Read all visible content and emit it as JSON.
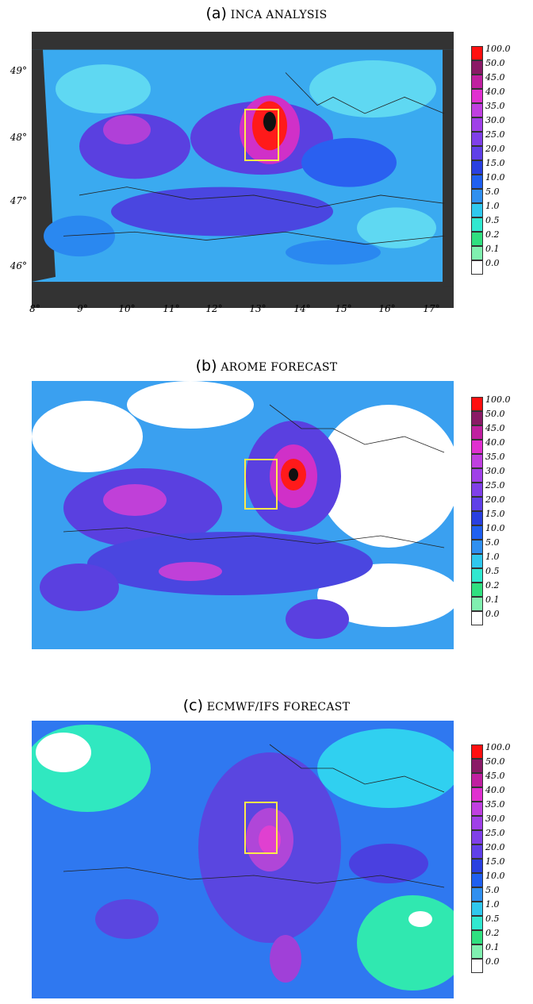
{
  "panels": [
    {
      "tag": "(a)",
      "label": "INCA ANALYSIS"
    },
    {
      "tag": "(b)",
      "label": "AROME FORECAST"
    },
    {
      "tag": "(c)",
      "label": "ECMWF/IFS FORECAST"
    }
  ],
  "y_ticks": [
    "49°",
    "48°",
    "47°",
    "46°"
  ],
  "x_ticks": [
    "8°",
    "9°",
    "10°",
    "11°",
    "12°",
    "13°",
    "14°",
    "15°",
    "16°",
    "17°"
  ],
  "legend": {
    "levels": [
      "100.0",
      "50.0",
      "45.0",
      "40.0",
      "35.0",
      "30.0",
      "25.0",
      "20.0",
      "15.0",
      "10.0",
      "5.0",
      "1.0",
      "0.5",
      "0.2",
      "0.1",
      "0.0"
    ],
    "colors": [
      "#ff1010",
      "#8a1a66",
      "#c020a0",
      "#e030d0",
      "#c040e0",
      "#a040e8",
      "#8040e8",
      "#6040e8",
      "#2a40e0",
      "#2060f0",
      "#3090f0",
      "#30c8ee",
      "#30e8d0",
      "#30e080",
      "#80f0b0",
      "#ffffff"
    ]
  },
  "colors": {
    "frame": "#222222",
    "box": "#ffe94a",
    "land_mask": "#333333"
  }
}
